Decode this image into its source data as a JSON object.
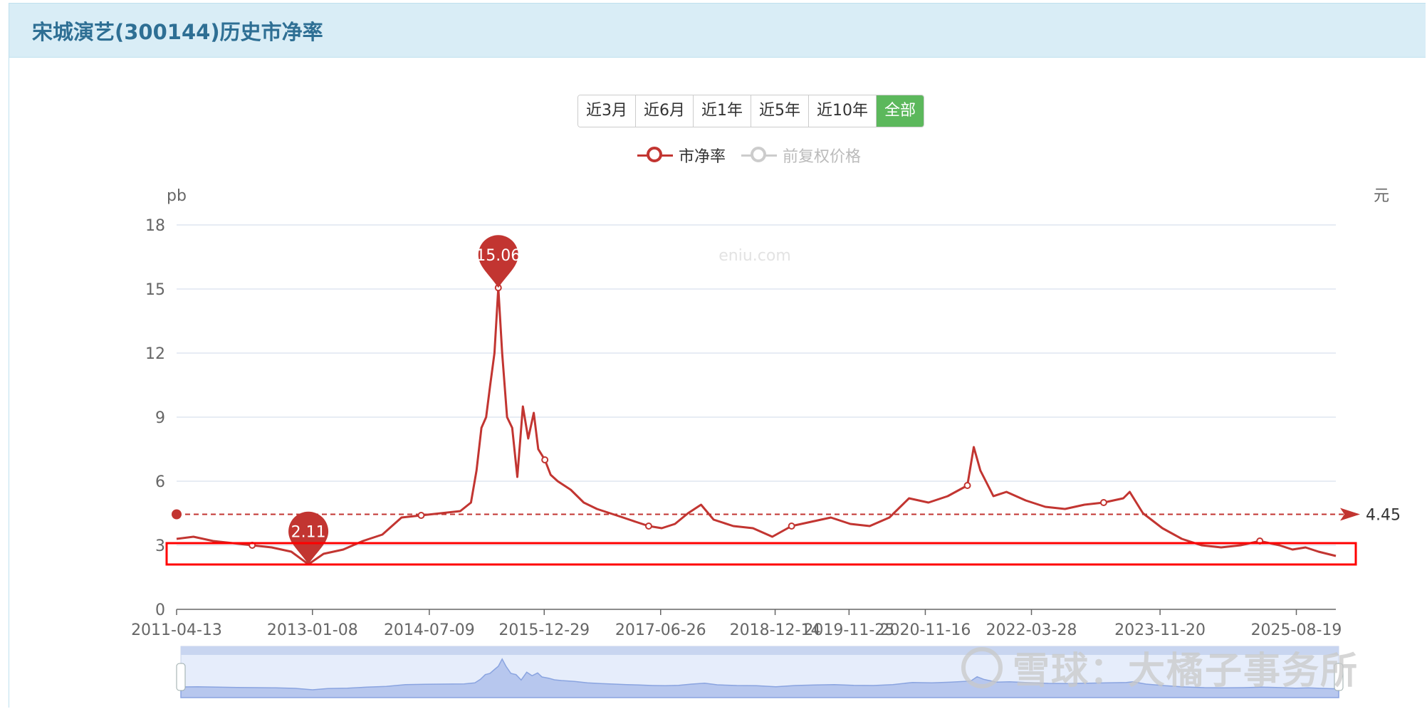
{
  "header": {
    "title": "宋城演艺(300144)历史市净率"
  },
  "range_buttons": [
    {
      "label": "近3月",
      "active": false
    },
    {
      "label": "近6月",
      "active": false
    },
    {
      "label": "近1年",
      "active": false
    },
    {
      "label": "近5年",
      "active": false
    },
    {
      "label": "近10年",
      "active": false
    },
    {
      "label": "全部",
      "active": true
    }
  ],
  "legend": [
    {
      "label": "市净率",
      "color": "#c23531",
      "active": true
    },
    {
      "label": "前复权价格",
      "color": "#cccccc",
      "active": false
    }
  ],
  "chart_watermark": "eniu.com",
  "watermark": {
    "text": "雪球：大橘子事务所"
  },
  "chart_data": {
    "type": "line",
    "ylabel": "pb",
    "y2label": "元",
    "ylim": [
      0,
      18
    ],
    "yticks": [
      "0",
      "3",
      "6",
      "9",
      "12",
      "15",
      "18"
    ],
    "grid": true,
    "xlim": [
      "2011-04-13",
      "2026-02-20"
    ],
    "xticks": [
      "2011-04-13",
      "2013-01-08",
      "2014-07-09",
      "2015-12-29",
      "2017-06-26",
      "2018-12-14",
      "2019-11-25",
      "2020-11-16",
      "2022-03-28",
      "2023-11-20",
      "2025-08-19"
    ],
    "series": [
      {
        "name": "市净率",
        "color": "#c23531",
        "x": [
          "2011-04-13",
          "2011-07-01",
          "2011-10-01",
          "2012-01-01",
          "2012-04-01",
          "2012-07-01",
          "2012-10-01",
          "2012-12-20",
          "2013-03-01",
          "2013-06-01",
          "2013-09-01",
          "2013-12-01",
          "2014-03-01",
          "2014-06-01",
          "2014-09-01",
          "2014-12-01",
          "2015-01-20",
          "2015-02-15",
          "2015-03-10",
          "2015-04-01",
          "2015-04-20",
          "2015-05-10",
          "2015-05-28",
          "2015-06-15",
          "2015-07-08",
          "2015-08-01",
          "2015-08-25",
          "2015-09-20",
          "2015-10-15",
          "2015-11-10",
          "2015-12-01",
          "2016-01-01",
          "2016-01-28",
          "2016-03-01",
          "2016-05-01",
          "2016-07-01",
          "2016-09-01",
          "2016-11-01",
          "2017-01-01",
          "2017-03-01",
          "2017-05-01",
          "2017-07-01",
          "2017-09-01",
          "2017-11-01",
          "2018-01-01",
          "2018-03-01",
          "2018-06-01",
          "2018-09-01",
          "2018-12-01",
          "2019-03-01",
          "2019-06-01",
          "2019-09-01",
          "2019-12-01",
          "2020-03-01",
          "2020-06-01",
          "2020-09-01",
          "2020-12-01",
          "2021-03-01",
          "2021-06-01",
          "2021-07-01",
          "2021-08-01",
          "2021-10-01",
          "2021-12-01",
          "2022-03-01",
          "2022-06-01",
          "2022-09-01",
          "2022-12-01",
          "2023-03-01",
          "2023-06-01",
          "2023-07-01",
          "2023-09-01",
          "2023-12-01",
          "2024-03-01",
          "2024-06-01",
          "2024-09-01",
          "2024-12-01",
          "2025-03-01",
          "2025-06-01",
          "2025-08-01",
          "2025-10-01",
          "2025-12-01",
          "2026-02-20"
        ],
        "values": [
          3.3,
          3.4,
          3.2,
          3.1,
          3.0,
          2.9,
          2.7,
          2.11,
          2.6,
          2.8,
          3.2,
          3.5,
          4.3,
          4.4,
          4.5,
          4.6,
          5.0,
          6.5,
          8.5,
          9.0,
          10.5,
          12.0,
          15.06,
          12.0,
          9.0,
          8.5,
          6.2,
          9.5,
          8.0,
          9.2,
          7.5,
          7.0,
          6.3,
          6.0,
          5.6,
          5.0,
          4.7,
          4.5,
          4.3,
          4.1,
          3.9,
          3.8,
          4.0,
          4.5,
          4.9,
          4.2,
          3.9,
          3.8,
          3.4,
          3.9,
          4.1,
          4.3,
          4.0,
          3.9,
          4.3,
          5.2,
          5.0,
          5.3,
          5.8,
          7.6,
          6.5,
          5.3,
          5.5,
          5.1,
          4.8,
          4.7,
          4.9,
          5.0,
          5.2,
          5.5,
          4.5,
          3.8,
          3.3,
          3.0,
          2.9,
          3.0,
          3.2,
          3.0,
          2.8,
          2.9,
          2.7,
          2.5
        ]
      }
    ],
    "max_marker": {
      "x": "2015-05-28",
      "value": 15.06,
      "label": "15.06"
    },
    "min_marker": {
      "x": "2012-12-20",
      "value": 2.11,
      "label": "2.11"
    },
    "average_line": {
      "value": 4.45,
      "label": "4.45"
    }
  }
}
